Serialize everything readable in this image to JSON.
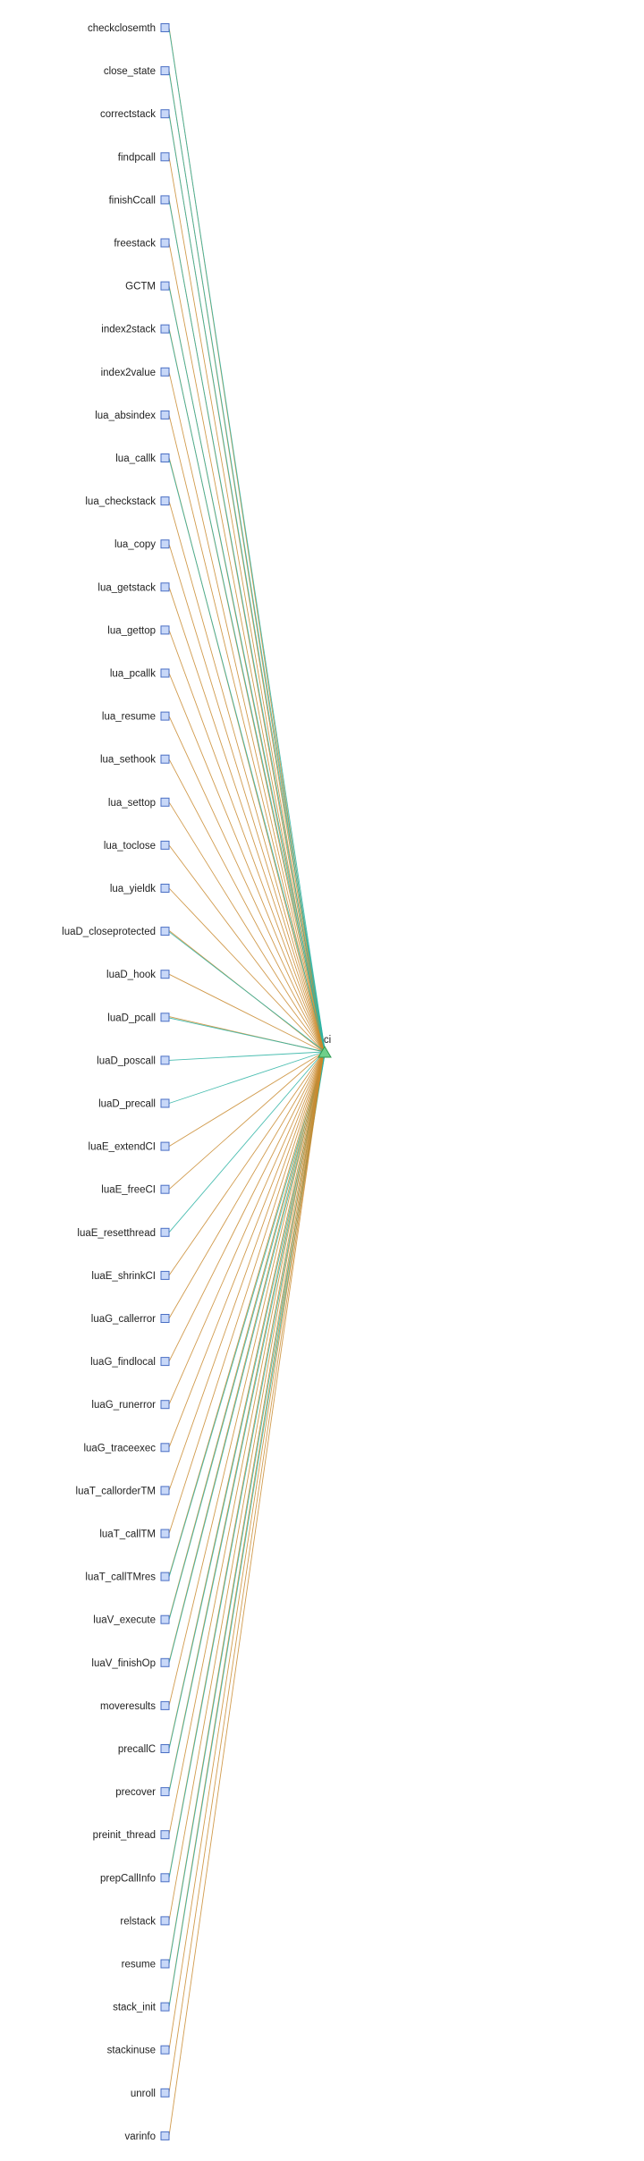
{
  "target": {
    "label": "ci"
  },
  "nodes": [
    {
      "label": "checkclosemth",
      "edges": [
        "orange",
        "teal"
      ]
    },
    {
      "label": "close_state",
      "edges": [
        "orange",
        "teal"
      ]
    },
    {
      "label": "correctstack",
      "edges": [
        "orange",
        "teal"
      ]
    },
    {
      "label": "findpcall",
      "edges": [
        "orange"
      ]
    },
    {
      "label": "finishCcall",
      "edges": [
        "orange",
        "teal"
      ]
    },
    {
      "label": "freestack",
      "edges": [
        "orange"
      ]
    },
    {
      "label": "GCTM",
      "edges": [
        "orange",
        "teal"
      ]
    },
    {
      "label": "index2stack",
      "edges": [
        "orange",
        "teal"
      ]
    },
    {
      "label": "index2value",
      "edges": [
        "orange"
      ]
    },
    {
      "label": "lua_absindex",
      "edges": [
        "orange"
      ]
    },
    {
      "label": "lua_callk",
      "edges": [
        "orange",
        "teal"
      ]
    },
    {
      "label": "lua_checkstack",
      "edges": [
        "orange"
      ]
    },
    {
      "label": "lua_copy",
      "edges": [
        "orange"
      ]
    },
    {
      "label": "lua_getstack",
      "edges": [
        "orange"
      ]
    },
    {
      "label": "lua_gettop",
      "edges": [
        "orange"
      ]
    },
    {
      "label": "lua_pcallk",
      "edges": [
        "orange"
      ]
    },
    {
      "label": "lua_resume",
      "edges": [
        "orange"
      ]
    },
    {
      "label": "lua_sethook",
      "edges": [
        "orange"
      ]
    },
    {
      "label": "lua_settop",
      "edges": [
        "orange"
      ]
    },
    {
      "label": "lua_toclose",
      "edges": [
        "orange"
      ]
    },
    {
      "label": "lua_yieldk",
      "edges": [
        "orange"
      ]
    },
    {
      "label": "luaD_closeprotected",
      "edges": [
        "orange",
        "teal"
      ]
    },
    {
      "label": "luaD_hook",
      "edges": [
        "orange"
      ]
    },
    {
      "label": "luaD_pcall",
      "edges": [
        "orange",
        "teal"
      ]
    },
    {
      "label": "luaD_poscall",
      "edges": [
        "teal"
      ]
    },
    {
      "label": "luaD_precall",
      "edges": [
        "teal"
      ]
    },
    {
      "label": "luaE_extendCI",
      "edges": [
        "orange"
      ]
    },
    {
      "label": "luaE_freeCI",
      "edges": [
        "orange"
      ]
    },
    {
      "label": "luaE_resetthread",
      "edges": [
        "teal"
      ]
    },
    {
      "label": "luaE_shrinkCI",
      "edges": [
        "orange"
      ]
    },
    {
      "label": "luaG_callerror",
      "edges": [
        "orange"
      ]
    },
    {
      "label": "luaG_findlocal",
      "edges": [
        "orange"
      ]
    },
    {
      "label": "luaG_runerror",
      "edges": [
        "orange"
      ]
    },
    {
      "label": "luaG_traceexec",
      "edges": [
        "orange"
      ]
    },
    {
      "label": "luaT_callorderTM",
      "edges": [
        "orange"
      ]
    },
    {
      "label": "luaT_callTM",
      "edges": [
        "orange"
      ]
    },
    {
      "label": "luaT_callTMres",
      "edges": [
        "orange",
        "teal"
      ]
    },
    {
      "label": "luaV_execute",
      "edges": [
        "orange",
        "teal"
      ]
    },
    {
      "label": "luaV_finishOp",
      "edges": [
        "orange",
        "teal"
      ]
    },
    {
      "label": "moveresults",
      "edges": [
        "orange"
      ]
    },
    {
      "label": "precallC",
      "edges": [
        "orange",
        "teal"
      ]
    },
    {
      "label": "precover",
      "edges": [
        "orange",
        "teal"
      ]
    },
    {
      "label": "preinit_thread",
      "edges": [
        "orange"
      ]
    },
    {
      "label": "prepCallInfo",
      "edges": [
        "orange",
        "teal"
      ]
    },
    {
      "label": "relstack",
      "edges": [
        "orange"
      ]
    },
    {
      "label": "resume",
      "edges": [
        "orange",
        "teal"
      ]
    },
    {
      "label": "stack_init",
      "edges": [
        "orange",
        "teal"
      ]
    },
    {
      "label": "stackinuse",
      "edges": [
        "orange"
      ]
    },
    {
      "label": "unroll",
      "edges": [
        "orange"
      ]
    },
    {
      "label": "varinfo",
      "edges": [
        "orange"
      ]
    }
  ],
  "colors": {
    "orange": "#c98a2e",
    "teal": "#2bb3a3",
    "node_fill": "#c8d8f8",
    "node_stroke": "#4a6fc4",
    "target_fill": "#6fcf8a"
  }
}
